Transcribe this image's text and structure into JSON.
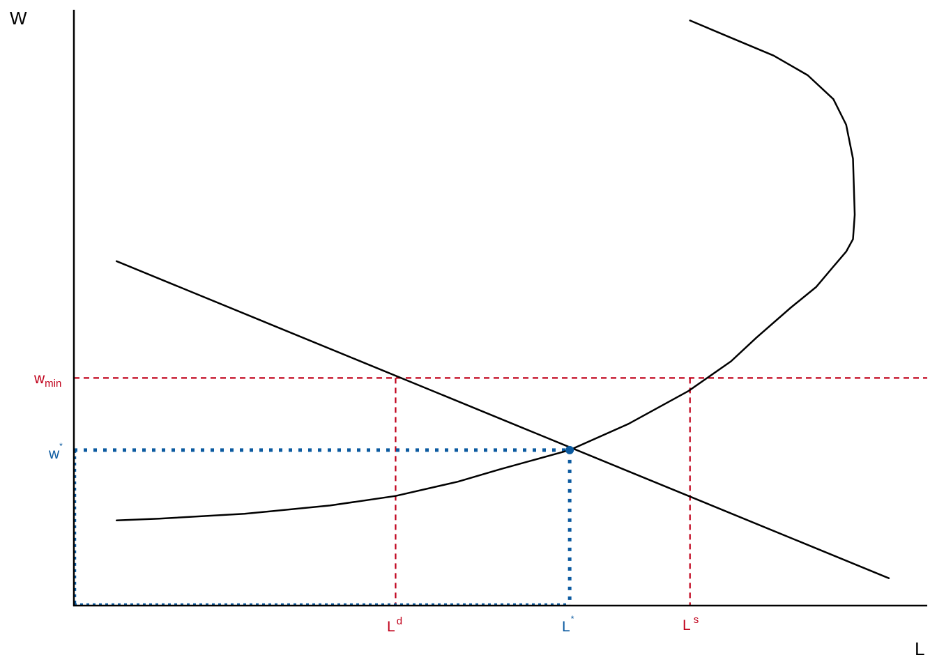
{
  "colors": {
    "axis": "#000000",
    "curve": "#000000",
    "minwage": "#c0001a",
    "equilibrium": "#0b5aa0"
  },
  "chart_data": {
    "type": "line",
    "xlabel": "L",
    "ylabel": "W",
    "xlim": [
      0,
      100
    ],
    "ylim": [
      0,
      100
    ],
    "grid": false,
    "series": [
      {
        "values_x": [
          5,
          10,
          20,
          30,
          37.7,
          45,
          50,
          58.1,
          65,
          72,
          77,
          80,
          84,
          87,
          89,
          90.5,
          91.3,
          91.5,
          91.3,
          90.5,
          89,
          86,
          82,
          77,
          72.2
        ],
        "values_y": [
          14.3,
          14.6,
          15.4,
          16.8,
          18.4,
          20.8,
          22.9,
          26.1,
          30.5,
          36,
          41,
          45,
          50,
          53.5,
          56.9,
          59.4,
          61.5,
          65.6,
          75,
          80.7,
          85,
          89,
          92.3,
          95.3,
          98.2
        ]
      },
      {
        "values_x": [
          5,
          95.5
        ],
        "values_y": [
          57.8,
          4.6
        ]
      }
    ],
    "points": [
      {
        "x": 58.1,
        "y": 26.1
      }
    ],
    "reference_lines": {
      "wmin_y": 38.2,
      "wstar_y": 26.1,
      "ld_x": 37.7,
      "lstar_x": 58.1,
      "ls_x": 72.2
    },
    "labels": {
      "wmin_main": "w",
      "wmin_sub": "min",
      "wstar_main": "w",
      "wstar_sup": "*",
      "ld_main": "L",
      "ld_sup": "d",
      "lstar_main": "L",
      "lstar_sup": "*",
      "ls_main": "L",
      "ls_sup": "s"
    }
  }
}
